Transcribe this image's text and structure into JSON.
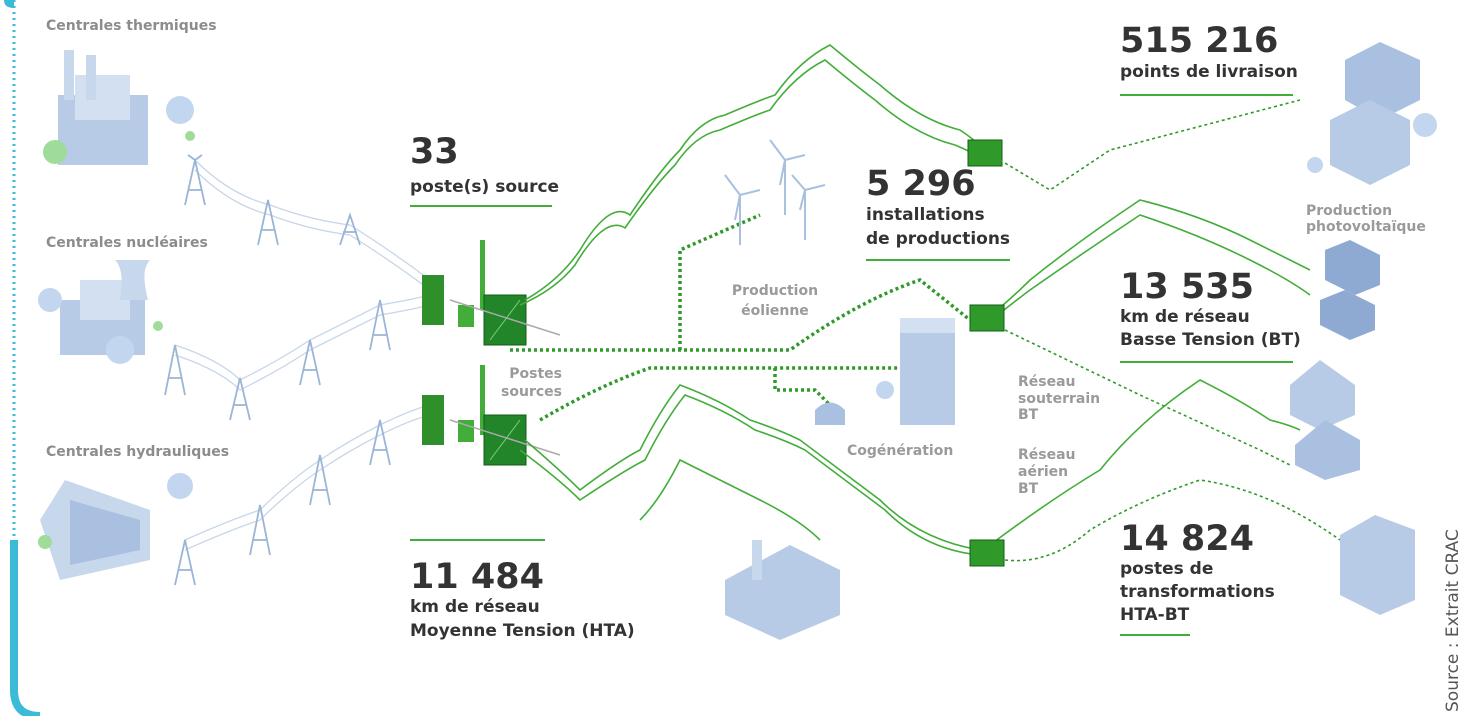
{
  "plants": [
    "Centrales thermiques",
    "Centrales nucléaires",
    "Centrales hydrauliques"
  ],
  "stats": [
    {
      "value": "33",
      "lines": [
        "poste(s) source"
      ]
    },
    {
      "value": "5 296",
      "lines": [
        "installations",
        "de productions"
      ]
    },
    {
      "value": "515 216",
      "lines": [
        "points de livraison"
      ]
    },
    {
      "value": "13 535",
      "lines": [
        "km de réseau",
        "Basse Tension (BT)"
      ]
    },
    {
      "value": "11 484",
      "lines": [
        "km de réseau",
        "Moyenne Tension (HTA)"
      ]
    },
    {
      "value": "14 824",
      "lines": [
        "postes de",
        "transformations",
        "HTA-BT"
      ]
    }
  ],
  "labels": [
    {
      "lines": [
        "Postes",
        "sources"
      ]
    },
    {
      "lines": [
        "Production",
        "éolienne"
      ]
    },
    {
      "lines": [
        "Cogénération"
      ]
    },
    {
      "lines": [
        "Production",
        "photovoltaïque"
      ]
    },
    {
      "lines": [
        "Réseau",
        "souterrain",
        "BT"
      ]
    },
    {
      "lines": [
        "Réseau",
        "aérien",
        "BT"
      ]
    }
  ],
  "source": "Source : Extrait CRAC"
}
